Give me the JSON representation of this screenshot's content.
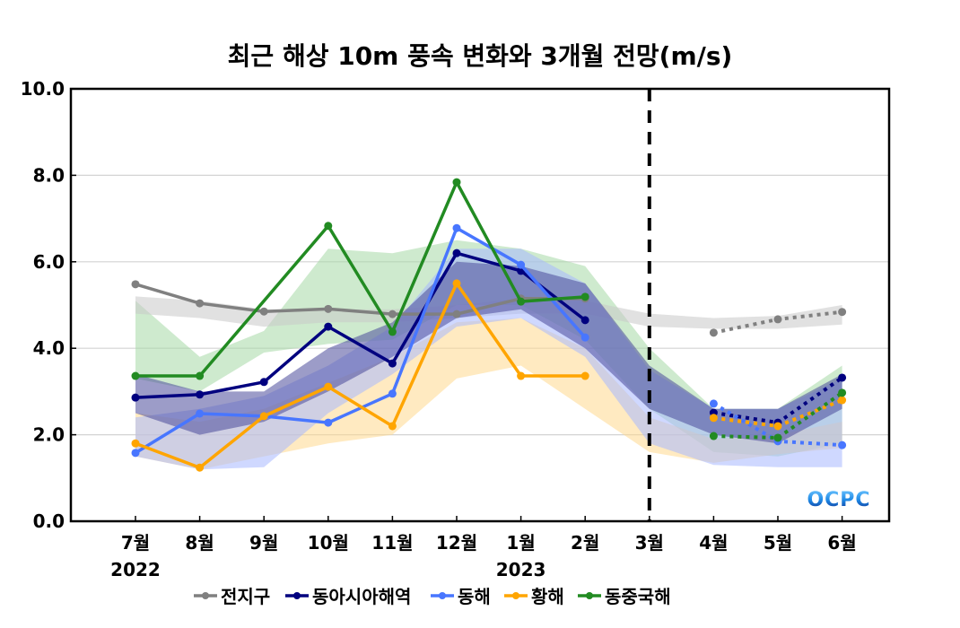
{
  "chart_data": {
    "type": "line",
    "title": "최근 해상 10m 풍속 변화와 3개월 전망(m/s)",
    "xlabel": "",
    "ylabel": "",
    "ylim": [
      0,
      10
    ],
    "yticks": [
      "0.0",
      "2.0",
      "4.0",
      "6.0",
      "8.0",
      "10.0"
    ],
    "ytick_values": [
      0,
      2,
      4,
      6,
      8,
      10
    ],
    "grid": true,
    "categories": [
      "7월",
      "8월",
      "9월",
      "10월",
      "11월",
      "12월",
      "1월",
      "2월",
      "3월",
      "4월",
      "5월",
      "6월"
    ],
    "year_labels": [
      {
        "label": "2022",
        "category_index": 0
      },
      {
        "label": "2023",
        "category_index": 6
      }
    ],
    "divider": {
      "category_index": 8,
      "style": "dashed",
      "color": "#000000"
    },
    "observed_range": [
      0,
      7
    ],
    "forecast_range": [
      9,
      11
    ],
    "legend_position": "bottom-center",
    "series": [
      {
        "name": "전지구",
        "color": "#808080",
        "band_color": "#c8c8c8",
        "observed": [
          5.48,
          5.04,
          4.85,
          4.91,
          4.79,
          4.79,
          5.15,
          5.15
        ],
        "forecast": [
          4.36,
          4.67,
          4.84
        ],
        "band_lower": [
          4.8,
          4.7,
          4.5,
          4.6,
          4.6,
          4.7,
          4.8,
          4.8,
          4.5,
          4.45,
          4.45,
          4.55
        ],
        "band_upper": [
          5.2,
          5.1,
          4.9,
          4.9,
          4.9,
          5.0,
          5.15,
          5.1,
          4.8,
          4.7,
          4.75,
          5.0
        ]
      },
      {
        "name": "동아시아해역",
        "color": "#00007f",
        "band_color": "#4a4a9a",
        "observed": [
          2.86,
          2.93,
          3.22,
          4.5,
          3.65,
          6.2,
          5.79,
          4.65
        ],
        "forecast": [
          2.51,
          2.28,
          3.32
        ],
        "band_lower": [
          2.5,
          2.0,
          2.3,
          3.0,
          3.8,
          4.7,
          4.9,
          4.0,
          2.6,
          2.0,
          1.8,
          2.6
        ],
        "band_upper": [
          3.4,
          3.0,
          3.0,
          4.0,
          4.6,
          6.0,
          5.9,
          5.5,
          3.6,
          2.6,
          2.6,
          3.4
        ]
      },
      {
        "name": "동해",
        "color": "#4876ff",
        "band_color": "#a8b8ff",
        "observed": [
          1.58,
          2.49,
          2.43,
          2.28,
          2.95,
          6.78,
          5.93,
          4.25
        ],
        "forecast": [
          2.72,
          1.85,
          1.76
        ],
        "band_lower": [
          1.5,
          1.2,
          1.25,
          2.5,
          3.4,
          4.5,
          4.7,
          3.8,
          1.8,
          1.3,
          1.25,
          1.25
        ],
        "band_upper": [
          2.4,
          2.6,
          2.9,
          3.6,
          4.5,
          6.3,
          6.3,
          5.5,
          3.5,
          2.6,
          2.6,
          3.3
        ]
      },
      {
        "name": "황해",
        "color": "#ffa500",
        "band_color": "#ffd98e",
        "observed": [
          1.8,
          1.24,
          2.43,
          3.11,
          2.2,
          5.5,
          3.36,
          3.36
        ],
        "forecast": [
          2.39,
          2.2,
          2.8
        ],
        "band_lower": [
          1.5,
          1.2,
          1.5,
          1.8,
          2.0,
          3.3,
          3.6,
          2.6,
          1.6,
          1.35,
          1.55,
          1.7
        ],
        "band_upper": [
          2.5,
          2.3,
          2.6,
          3.2,
          3.8,
          4.6,
          4.7,
          4.0,
          2.4,
          1.9,
          2.0,
          2.3
        ]
      },
      {
        "name": "동중국해",
        "color": "#228b22",
        "band_color": "#a6d8a6",
        "observed": [
          3.36,
          3.36,
          null,
          6.83,
          4.38,
          7.84,
          5.08,
          5.19
        ],
        "forecast": [
          1.97,
          1.93,
          2.97
        ],
        "band_lower": [
          3.3,
          3.0,
          3.9,
          4.1,
          4.2,
          5.0,
          5.0,
          4.2,
          2.6,
          1.6,
          1.5,
          1.8
        ],
        "band_upper": [
          5.1,
          3.8,
          4.4,
          6.3,
          6.2,
          6.5,
          6.3,
          5.9,
          4.0,
          2.6,
          2.6,
          3.6
        ]
      }
    ]
  },
  "logo": {
    "text": "OCPC"
  }
}
